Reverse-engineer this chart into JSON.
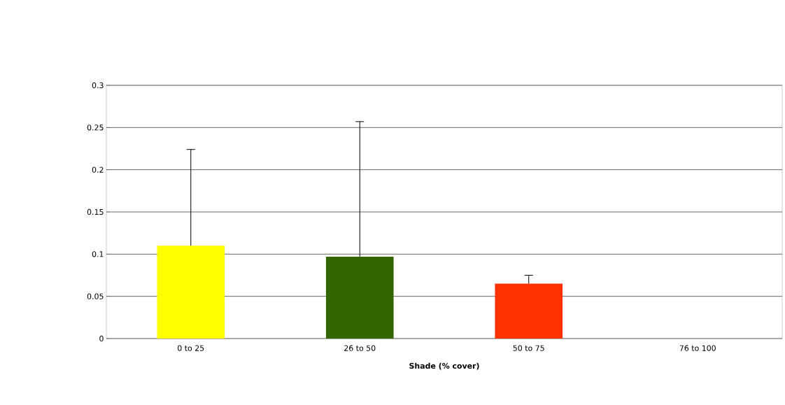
{
  "chart_data": {
    "type": "bar",
    "xlabel": "Shade (% cover)",
    "categories": [
      "0 to 25",
      "26 to 50",
      "50 to 75",
      "76 to 100"
    ],
    "values": [
      0.11,
      0.097,
      0.065,
      0
    ],
    "colors": [
      "#ffff00",
      "#336600",
      "#ff3300",
      "#808080"
    ],
    "errors": [
      [
        0.11,
        0.224
      ],
      [
        0.097,
        0.257
      ],
      [
        0.065,
        0.075
      ],
      null
    ],
    "ylim": [
      0,
      0.3
    ],
    "yticks": [
      0,
      0.05,
      0.1,
      0.15,
      0.2,
      0.25,
      0.3
    ],
    "grid": "y"
  }
}
